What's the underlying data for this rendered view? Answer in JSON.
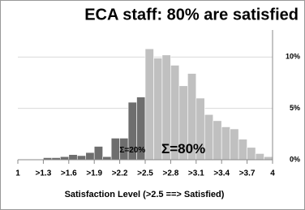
{
  "chart_data": {
    "type": "histogram",
    "title": "ECA staff: 80% are satisfied",
    "x_label": "Satisfaction Level (>2.5 ==> Satisfied)",
    "series": [
      {
        "color": "#6e6e6e",
        "bins": [
          1,
          1.1,
          1.2,
          1.3,
          1.4,
          1.5,
          1.6,
          1.7,
          1.8,
          1.9,
          2.0,
          2.1,
          2.2,
          2.3,
          2.4,
          2.5
        ],
        "values": [
          0,
          0,
          0,
          0.2,
          0.2,
          0.3,
          0.5,
          0.4,
          0.7,
          1.3,
          0.3,
          2.1,
          2.1,
          5.6,
          6.1
        ]
      },
      {
        "color": "#c0c0c0",
        "bins": [
          2.5,
          2.6,
          2.7,
          2.8,
          2.9,
          3.0,
          3.1,
          3.2,
          3.3,
          3.4,
          3.5,
          3.6,
          3.7,
          3.8,
          3.9,
          4.0
        ],
        "values": [
          10.8,
          9.9,
          10.2,
          9.2,
          7.2,
          8.4,
          6.0,
          4.4,
          3.8,
          3.2,
          3.0,
          2.0,
          1.2,
          0.6,
          0.3
        ]
      }
    ],
    "annotations": [
      {
        "text": "Σ=20%",
        "x": 2.35,
        "y": 0.9,
        "color": "#ffffff",
        "size": 10
      },
      {
        "text": "Σ=80%",
        "x": 2.95,
        "y": 1.0,
        "color": "#555555",
        "size": 17
      }
    ],
    "xlim": [
      1,
      4
    ],
    "xticks": [
      1,
      {
        "value": 1.3,
        "label": ">1.3"
      },
      {
        "value": 1.6,
        "label": ">1.6"
      },
      {
        "value": 1.9,
        "label": ">1.9"
      },
      {
        "value": 2.2,
        "label": ">2.2"
      },
      {
        "value": 2.5,
        "label": ">2.5"
      },
      {
        "value": 2.8,
        "label": ">2.8"
      },
      {
        "value": 3.1,
        "label": ">3.1"
      },
      {
        "value": 3.4,
        "label": ">3.4"
      },
      {
        "value": 3.7,
        "label": ">3.7"
      },
      4
    ],
    "ylim": [
      0,
      12
    ],
    "yticks": [
      {
        "value": 0,
        "label": "0%"
      },
      {
        "value": 5,
        "label": "5%"
      },
      {
        "value": 10,
        "label": "10%"
      }
    ],
    "grid": true
  }
}
